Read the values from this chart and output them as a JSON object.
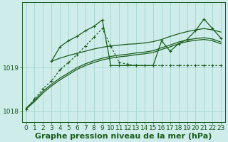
{
  "background_color": "#ceecea",
  "grid_color": "#a8d8d4",
  "line_color": "#1a5c1a",
  "xlabel": "Graphe pression niveau de la mer (hPa)",
  "xlabel_fontsize": 8,
  "tick_fontsize": 6.5,
  "ylim": [
    1017.75,
    1020.5
  ],
  "xlim": [
    -0.5,
    23.5
  ],
  "yticks": [
    1018,
    1019
  ],
  "xticks": [
    0,
    1,
    2,
    3,
    4,
    5,
    6,
    7,
    8,
    9,
    10,
    11,
    12,
    13,
    14,
    15,
    16,
    17,
    18,
    19,
    20,
    21,
    22,
    23
  ],
  "series": [
    {
      "x": [
        0,
        1,
        2,
        3,
        4,
        5,
        6,
        7,
        8,
        9,
        10,
        11,
        12,
        13,
        14,
        15,
        16,
        17,
        18,
        19,
        20,
        21,
        22,
        23
      ],
      "y": [
        1018.05,
        1018.28,
        1018.52,
        1018.7,
        1018.95,
        1019.12,
        1019.3,
        1019.5,
        1019.7,
        1019.9,
        1019.5,
        1019.12,
        1019.08,
        1019.05,
        1019.05,
        1019.05,
        1019.05,
        1019.05,
        1019.05,
        1019.05,
        1019.05,
        1019.05,
        1019.05,
        1019.05
      ],
      "linestyle": "dotted",
      "marker": "+"
    },
    {
      "x": [
        3,
        4,
        5,
        6,
        7,
        8,
        9,
        10,
        11,
        12,
        13,
        14,
        15,
        16,
        17,
        18,
        19,
        20,
        21,
        22,
        23
      ],
      "y": [
        1019.15,
        1019.48,
        1019.62,
        1019.72,
        1019.85,
        1019.95,
        1020.1,
        1019.05,
        1019.05,
        1019.05,
        1019.05,
        1019.05,
        1019.05,
        1019.62,
        1019.38,
        1019.55,
        1019.65,
        1019.85,
        1020.12,
        1019.9,
        1019.68
      ],
      "linestyle": "solid",
      "marker": "+"
    },
    {
      "x": [
        3,
        4,
        5,
        6,
        7,
        8,
        9,
        10,
        11,
        12,
        13,
        14,
        15,
        16,
        17,
        18,
        19,
        20,
        21,
        22,
        23
      ],
      "y": [
        1019.15,
        1019.22,
        1019.28,
        1019.33,
        1019.38,
        1019.43,
        1019.47,
        1019.5,
        1019.52,
        1019.54,
        1019.55,
        1019.57,
        1019.6,
        1019.65,
        1019.72,
        1019.78,
        1019.83,
        1019.87,
        1019.9,
        1019.87,
        1019.82
      ],
      "linestyle": "solid",
      "marker": null
    },
    {
      "x": [
        0,
        1,
        2,
        3,
        4,
        5,
        6,
        7,
        8,
        9,
        10,
        11,
        12,
        13,
        14,
        15,
        16,
        17,
        18,
        19,
        20,
        21,
        22,
        23
      ],
      "y": [
        1018.05,
        1018.22,
        1018.42,
        1018.58,
        1018.72,
        1018.84,
        1018.96,
        1019.05,
        1019.12,
        1019.18,
        1019.22,
        1019.25,
        1019.27,
        1019.3,
        1019.32,
        1019.35,
        1019.42,
        1019.48,
        1019.55,
        1019.6,
        1019.63,
        1019.65,
        1019.62,
        1019.55
      ],
      "linestyle": "solid",
      "marker": null
    },
    {
      "x": [
        0,
        1,
        2,
        3,
        4,
        5,
        6,
        7,
        8,
        9,
        10,
        11,
        12,
        13,
        14,
        15,
        16,
        17,
        18,
        19,
        20,
        21,
        22,
        23
      ],
      "y": [
        1018.07,
        1018.25,
        1018.46,
        1018.62,
        1018.76,
        1018.88,
        1019.0,
        1019.09,
        1019.16,
        1019.22,
        1019.26,
        1019.29,
        1019.31,
        1019.34,
        1019.36,
        1019.39,
        1019.46,
        1019.52,
        1019.59,
        1019.64,
        1019.67,
        1019.69,
        1019.66,
        1019.59
      ],
      "linestyle": "solid",
      "marker": null
    }
  ]
}
